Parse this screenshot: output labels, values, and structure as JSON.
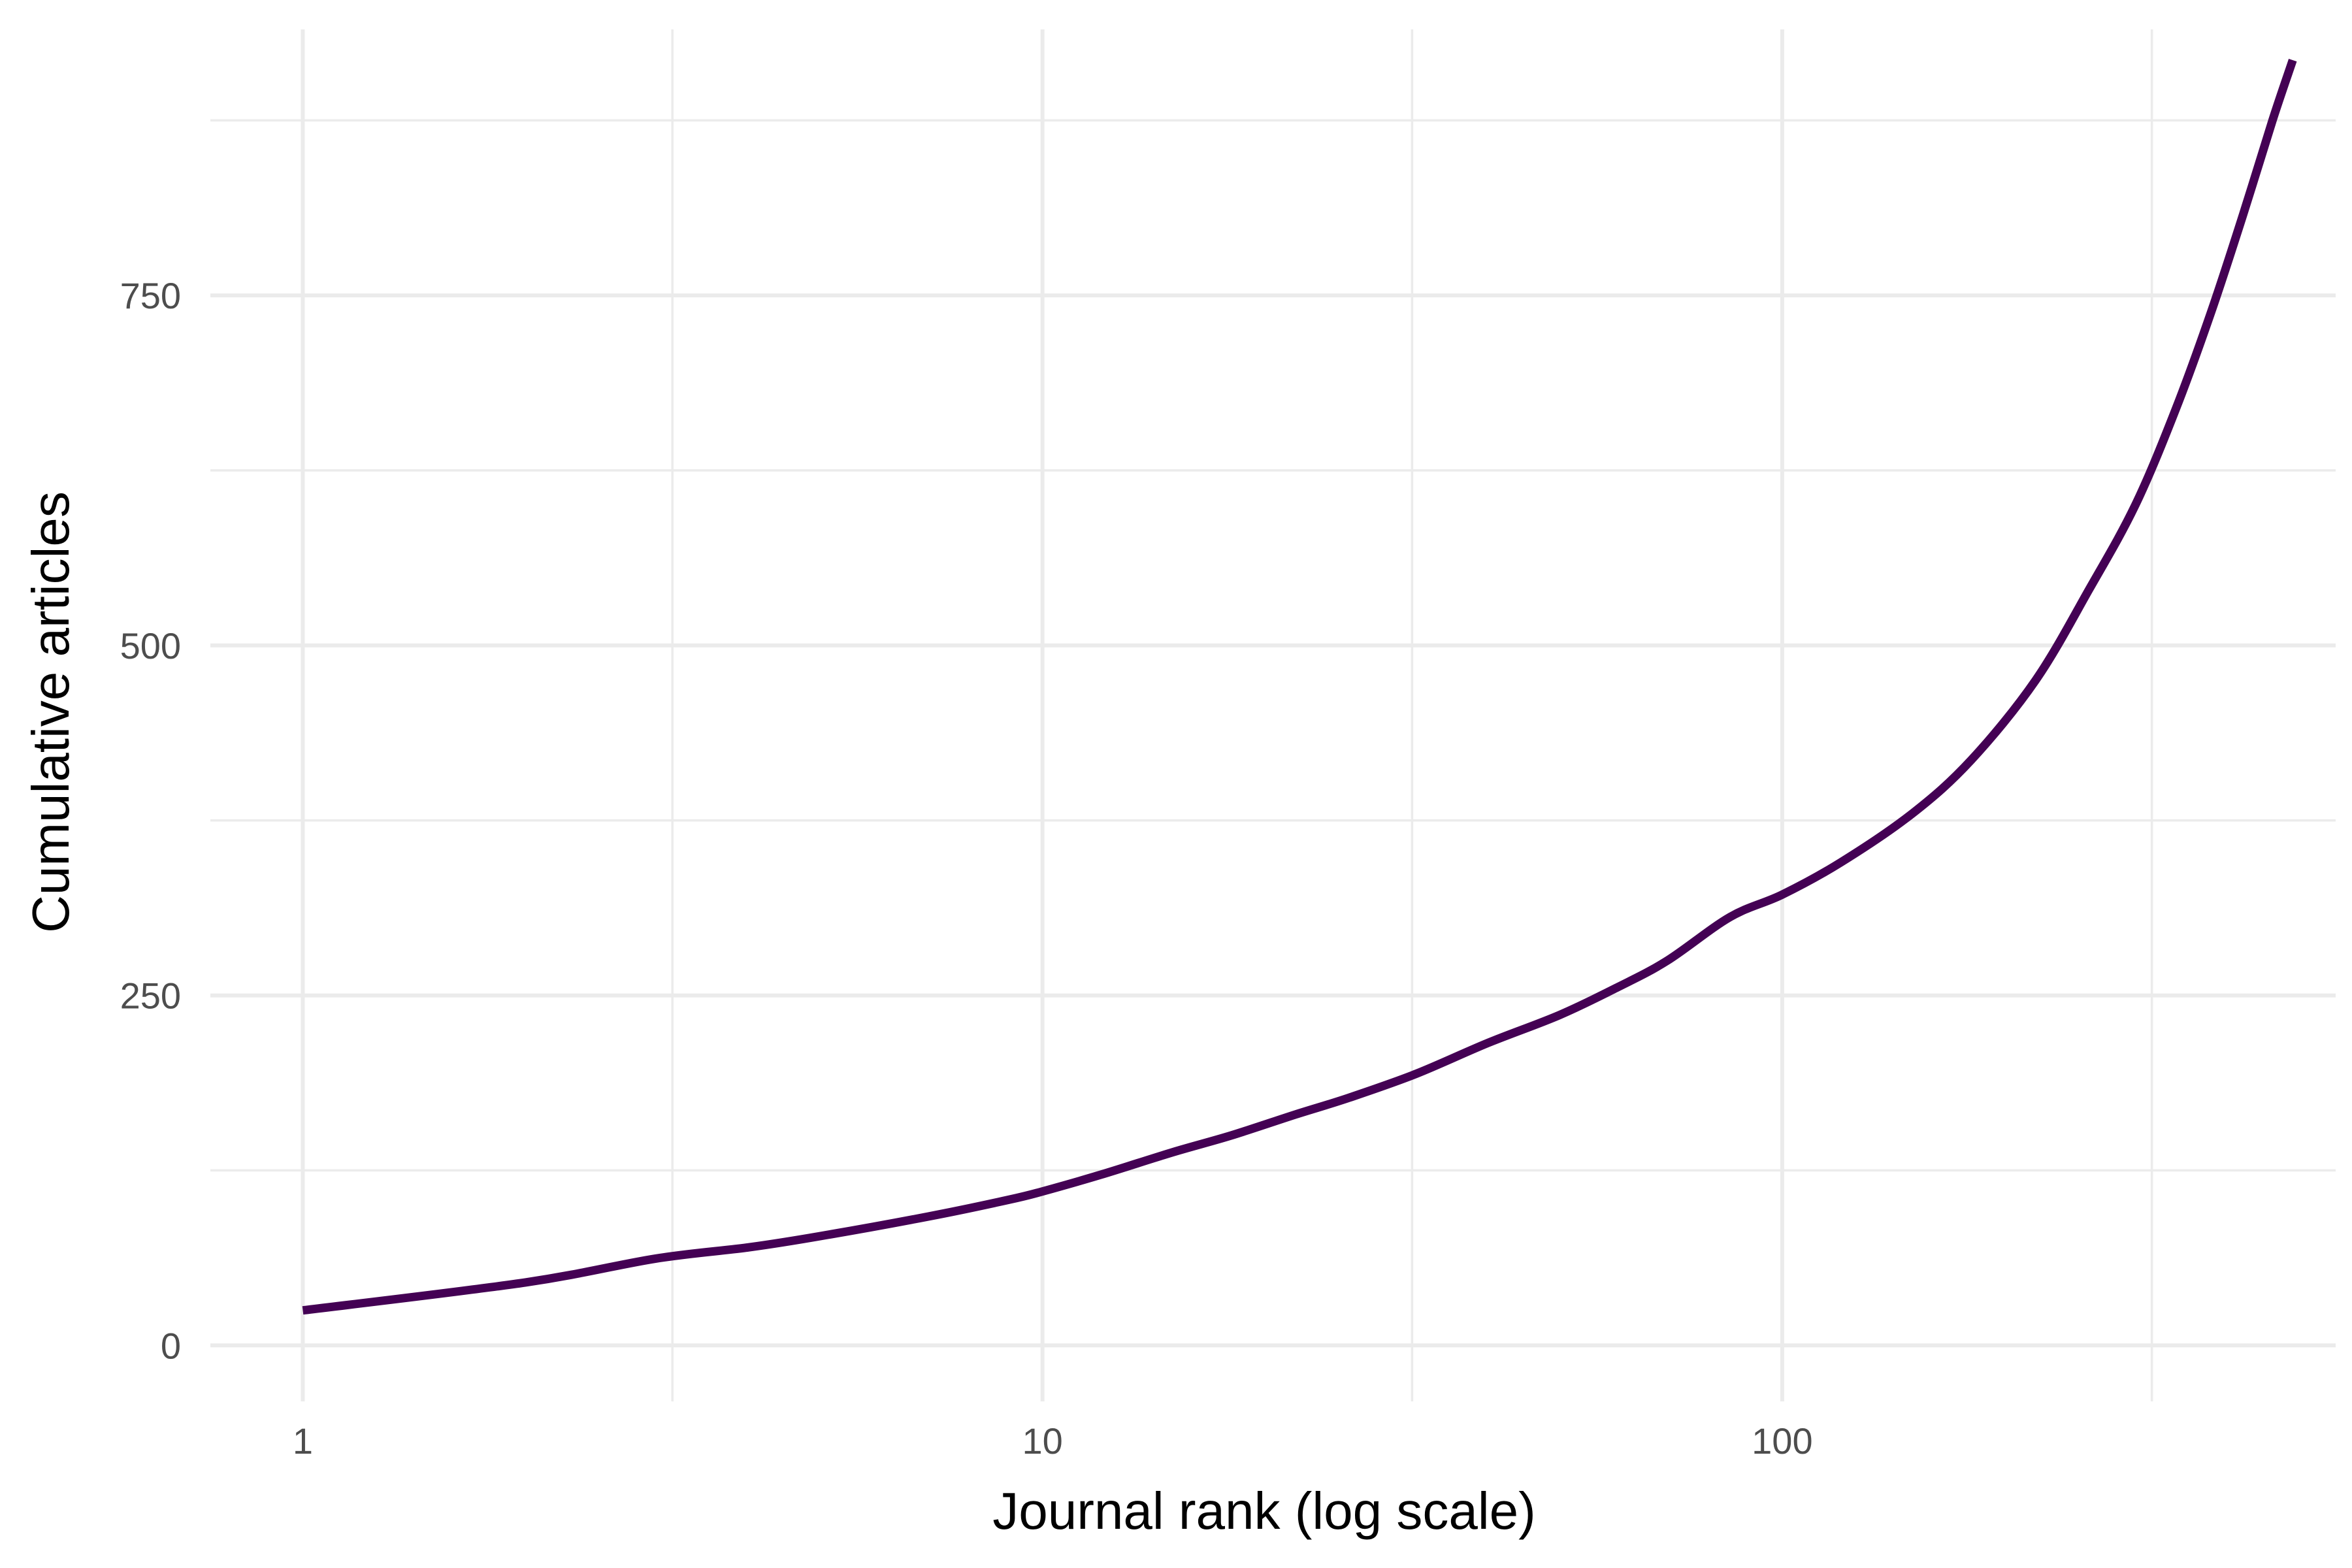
{
  "chart_data": {
    "type": "line",
    "title": "",
    "xlabel": "Journal rank (log scale)",
    "ylabel": "Cumulative articles",
    "x_scale": "log10",
    "xlim": [
      0.75,
      560
    ],
    "ylim": [
      -40,
      940
    ],
    "x_ticks": [
      1,
      10,
      100
    ],
    "x_tick_labels": [
      "1",
      "10",
      "100"
    ],
    "x_minor_ticks": [
      3.16,
      31.6,
      316
    ],
    "y_ticks": [
      0,
      250,
      500,
      750
    ],
    "y_tick_labels": [
      "0",
      "250",
      "500",
      "750"
    ],
    "y_minor_ticks": [
      125,
      375,
      625,
      875
    ],
    "grid": true,
    "legend": "none",
    "series": [
      {
        "color": "#440154",
        "x": [
          1,
          2,
          3,
          4,
          5,
          7,
          9,
          10,
          12,
          15,
          18,
          22,
          26,
          32,
          40,
          50,
          60,
          70,
          85,
          100,
          120,
          150,
          180,
          220,
          260,
          300,
          340,
          380,
          420,
          460,
          490
        ],
        "y": [
          25,
          45,
          62,
          70,
          78,
          92,
          104,
          110,
          122,
          138,
          150,
          165,
          177,
          194,
          216,
          236,
          256,
          275,
          306,
          322,
          345,
          380,
          418,
          475,
          540,
          600,
          668,
          738,
          808,
          875,
          918
        ]
      }
    ]
  }
}
